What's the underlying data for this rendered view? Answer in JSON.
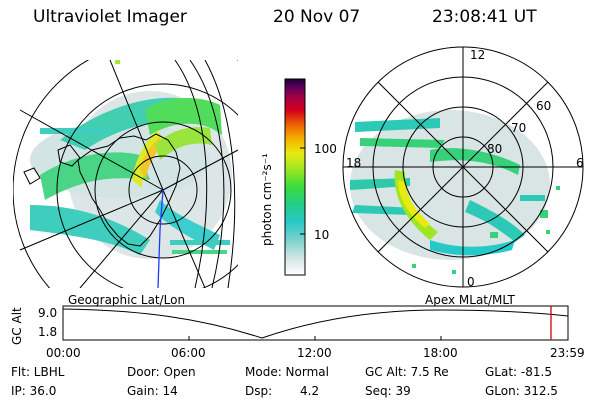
{
  "header": {
    "instrument": "Ultraviolet Imager",
    "date": "20 Nov 07",
    "time": "23:08:41 UT"
  },
  "geo_panel": {
    "label": "Geographic Lat/Lon"
  },
  "apex_panel": {
    "label": "Apex MLat/MLT",
    "mlt_labels": {
      "top": "12",
      "left": "18",
      "right": "6",
      "bottom": "0"
    },
    "lat_labels": [
      "60",
      "70",
      "80"
    ]
  },
  "colorbar": {
    "label": "photon cm⁻²s⁻¹",
    "ticks": [
      "100",
      "10"
    ],
    "scale": "log",
    "colors": [
      "#ffffff",
      "#d8e6e6",
      "#7ad2cc",
      "#29c8c8",
      "#22cf8a",
      "#3bdc3b",
      "#9ee622",
      "#e8ea10",
      "#f5b400",
      "#ee6a00",
      "#d4001e",
      "#a00046",
      "#5a0058",
      "#1a0034"
    ]
  },
  "timeline": {
    "ylabel": "GC Alt",
    "yticks": [
      "9.0",
      "1.8"
    ],
    "xticks": [
      "00:00",
      "06:00",
      "12:00",
      "18:00",
      "23:59"
    ]
  },
  "info": {
    "filter": "Flt: LBHL",
    "ip": "IP: 36.0",
    "door": "Door: Open",
    "gain": "Gain: 14",
    "mode": "Mode: Normal",
    "dsp_label": "Dsp:",
    "dsp_value": "4.2",
    "gc_alt": "GC Alt: 7.5 Re",
    "seq": "Seq: 39",
    "glat": "GLat: -81.5",
    "glon": "GLon: 312.5"
  }
}
